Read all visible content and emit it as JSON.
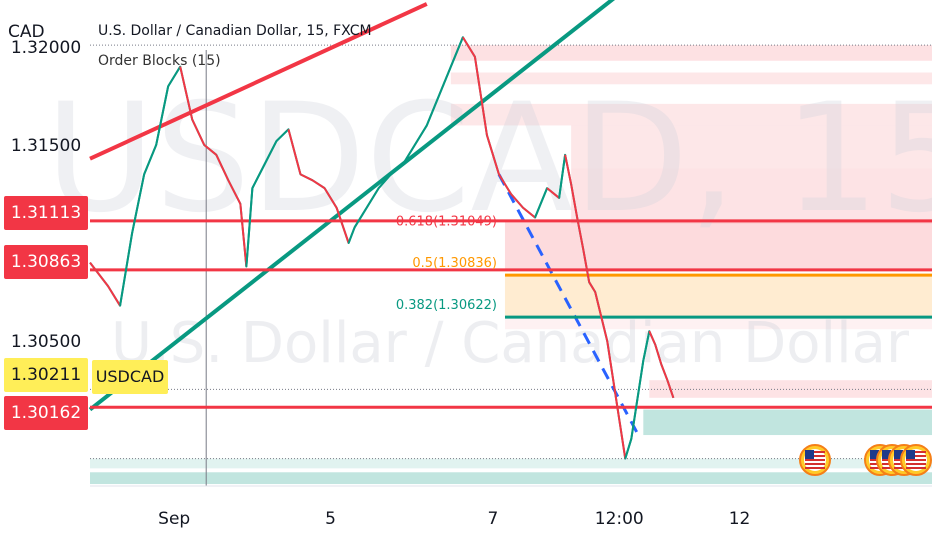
{
  "header": {
    "title": "U.S. Dollar / Canadian Dollar, 15, FXCM",
    "indicator": "Order Blocks (15)",
    "currency": "CAD"
  },
  "watermark": {
    "symbol": "USDCAD, 15",
    "name": "U.S. Dollar / Canadian Dollar"
  },
  "price_badges": {
    "level_1": "1.31113",
    "level_2": "1.30863",
    "current": "1.30211",
    "level_3": "1.30162",
    "symbol_tag": "USDCAD"
  },
  "fib_labels": {
    "f618": "0.618(1.31049)",
    "f50": "0.5(1.30836)",
    "f382": "0.382(1.30622)"
  },
  "colors": {
    "red": "#f23645",
    "green_trend": "#089981",
    "orange": "#ff9800",
    "blue_dash": "#2962ff",
    "candle_up": "#089981",
    "candle_down": "#f23645",
    "highlight": "#ffee58"
  },
  "icons": [
    "us-flag-icon",
    "us-flag-icon",
    "us-flag-icon",
    "us-flag-icon",
    "us-flag-icon"
  ],
  "chart_data": {
    "type": "line",
    "title": "U.S. Dollar / Canadian Dollar, 15, FXCM",
    "xlabel": "",
    "ylabel": "CAD",
    "ylim": [
      1.2976,
      1.3224
    ],
    "y_ticks": [
      "1.32000",
      "1.31500",
      "1.30500"
    ],
    "x_ticks": [
      {
        "label": "Sep",
        "x": 14
      },
      {
        "label": "5",
        "x": 40
      },
      {
        "label": "7",
        "x": 67
      },
      {
        "label": "12:00",
        "x": 88
      },
      {
        "label": "12",
        "x": 108
      }
    ],
    "x_range": [
      0,
      140
    ],
    "price_path": [
      [
        0,
        1.309
      ],
      [
        3,
        1.3078
      ],
      [
        5,
        1.3068
      ],
      [
        7,
        1.3105
      ],
      [
        9,
        1.3135
      ],
      [
        11,
        1.315
      ],
      [
        13,
        1.318
      ],
      [
        15,
        1.319
      ],
      [
        17,
        1.3163
      ],
      [
        19,
        1.315
      ],
      [
        21,
        1.3145
      ],
      [
        23,
        1.3132
      ],
      [
        25,
        1.312
      ],
      [
        26,
        1.3088
      ],
      [
        27,
        1.3128
      ],
      [
        29,
        1.314
      ],
      [
        31,
        1.3152
      ],
      [
        33,
        1.3158
      ],
      [
        35,
        1.3135
      ],
      [
        37,
        1.3132
      ],
      [
        39,
        1.3128
      ],
      [
        41,
        1.3118
      ],
      [
        43,
        1.31
      ],
      [
        44,
        1.3108
      ],
      [
        46,
        1.3118
      ],
      [
        48,
        1.3128
      ],
      [
        50,
        1.3135
      ],
      [
        52,
        1.314
      ],
      [
        54,
        1.315
      ],
      [
        56,
        1.316
      ],
      [
        58,
        1.3175
      ],
      [
        60,
        1.319
      ],
      [
        62,
        1.3205
      ],
      [
        64,
        1.3195
      ],
      [
        65,
        1.3175
      ],
      [
        66,
        1.3155
      ],
      [
        68,
        1.3135
      ],
      [
        70,
        1.3125
      ],
      [
        72,
        1.3118
      ],
      [
        74,
        1.3113
      ],
      [
        76,
        1.3128
      ],
      [
        78,
        1.3123
      ],
      [
        79,
        1.3145
      ],
      [
        80,
        1.313
      ],
      [
        81,
        1.3113
      ],
      [
        82,
        1.3097
      ],
      [
        83,
        1.308
      ],
      [
        84,
        1.3075
      ],
      [
        86,
        1.305
      ],
      [
        88,
        1.301
      ],
      [
        89,
        1.299
      ],
      [
        90,
        1.3
      ],
      [
        91,
        1.302
      ],
      [
        92,
        1.304
      ],
      [
        93,
        1.3055
      ],
      [
        94,
        1.3048
      ],
      [
        95,
        1.3038
      ],
      [
        96,
        1.303
      ],
      [
        97,
        1.3021
      ]
    ],
    "lines": [
      {
        "name": "",
        "color": "red",
        "points": [
          [
            0,
            1.3143
          ],
          [
            56,
            1.3222
          ]
        ]
      },
      {
        "name": "",
        "color": "green_trend",
        "points": [
          [
            0,
            1.3015
          ],
          [
            88,
            1.3227
          ]
        ]
      },
      {
        "name": "",
        "color": "blue_dash",
        "points": [
          [
            68,
            1.3135
          ],
          [
            91,
            1.3003
          ]
        ]
      },
      {
        "name": "",
        "color": "red",
        "points": [
          [
            0,
            1.31113
          ],
          [
            140,
            1.31113
          ]
        ]
      },
      {
        "name": "",
        "color": "red",
        "points": [
          [
            0,
            1.30863
          ],
          [
            140,
            1.30863
          ]
        ]
      },
      {
        "name": "",
        "color": "red",
        "points": [
          [
            0,
            1.30162
          ],
          [
            140,
            1.30162
          ]
        ]
      },
      {
        "name": "",
        "color": "orange",
        "points": [
          [
            69,
            1.30836
          ],
          [
            140,
            1.30836
          ]
        ]
      },
      {
        "name": "",
        "color": "green_trend",
        "points": [
          [
            69,
            1.30622
          ],
          [
            140,
            1.30622
          ]
        ]
      }
    ]
  }
}
